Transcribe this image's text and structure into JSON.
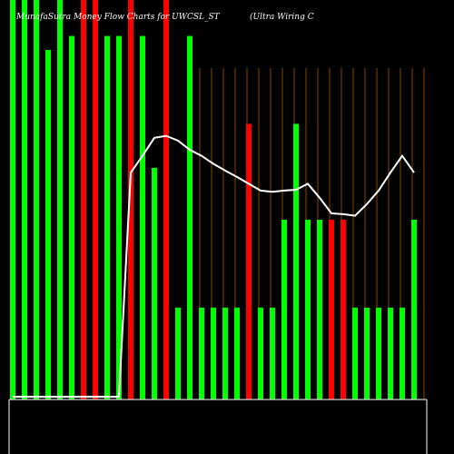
{
  "chart_data": {
    "type": "bar",
    "title": "MunafaSutra Money Flow Charts for UWCSL_ST",
    "subtitle": "(Ultra Wiring C",
    "values": [
      100,
      100,
      100,
      87.5,
      100,
      91,
      100,
      100,
      91,
      91,
      100,
      91,
      58,
      100,
      23,
      91,
      23,
      23,
      23,
      23,
      69,
      23,
      23,
      45,
      69,
      45,
      45,
      45,
      45,
      23,
      23,
      23,
      23,
      23,
      45
    ],
    "colors": [
      "#00ff00",
      "#00ff00",
      "#00ff00",
      "#00ff00",
      "#00ff00",
      "#00ff00",
      "#ff0000",
      "#ff0000",
      "#00ff00",
      "#00ff00",
      "#ff0000",
      "#00ff00",
      "#00ff00",
      "#ff0000",
      "#00ff00",
      "#00ff00",
      "#00ff00",
      "#00ff00",
      "#00ff00",
      "#00ff00",
      "#ff0000",
      "#00ff00",
      "#00ff00",
      "#00ff00",
      "#00ff00",
      "#00ff00",
      "#00ff00",
      "#ff0000",
      "#ff0000",
      "#00ff00",
      "#00ff00",
      "#00ff00",
      "#00ff00",
      "#00ff00",
      "#00ff00"
    ],
    "line": {
      "color": "#ffffff",
      "values": [
        0.7,
        0.7,
        0.7,
        0.7,
        0.7,
        0.7,
        0.7,
        0.7,
        0.7,
        0.7,
        56.8,
        61,
        65.5,
        66,
        64.8,
        62.5,
        61,
        59,
        57.3,
        55.7,
        54,
        52.3,
        52,
        52.3,
        52.5,
        54,
        50.5,
        46.6,
        46.4,
        46,
        48.9,
        52.3,
        56.8,
        61,
        56.8
      ]
    },
    "ylim": [
      0,
      100
    ]
  }
}
